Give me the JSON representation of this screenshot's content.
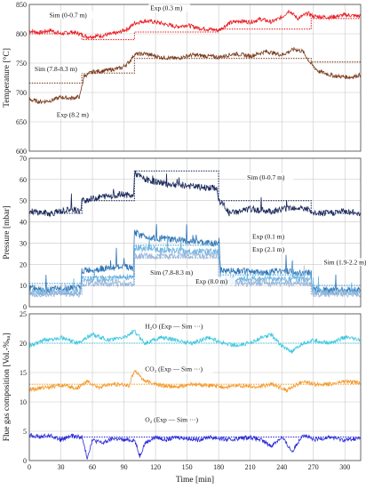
{
  "chart_data": [
    {
      "type": "line",
      "ylabel": "Temperature [°C]",
      "xlim": [
        0,
        315
      ],
      "ylim": [
        600,
        850
      ],
      "xticks": [
        0,
        30,
        60,
        90,
        120,
        150,
        180,
        210,
        240,
        270,
        300
      ],
      "yticks": [
        600,
        650,
        700,
        750,
        800,
        850
      ],
      "grid": true,
      "series": [
        {
          "name": "Exp (0.3 m)",
          "color": "#e8191e",
          "style": "solid",
          "x": [
            0,
            10,
            20,
            30,
            40,
            48,
            55,
            70,
            85,
            95,
            100,
            110,
            120,
            130,
            140,
            150,
            160,
            170,
            180,
            190,
            200,
            210,
            220,
            230,
            240,
            247,
            255,
            265,
            270,
            285,
            300,
            315
          ],
          "y": [
            805,
            802,
            806,
            800,
            803,
            800,
            795,
            797,
            802,
            810,
            818,
            822,
            820,
            816,
            812,
            815,
            810,
            808,
            806,
            818,
            822,
            820,
            825,
            820,
            828,
            840,
            826,
            835,
            830,
            828,
            832,
            830
          ]
        },
        {
          "name": "Sim (0-0.7 m)",
          "color": "#e8191e",
          "style": "dotted",
          "x": [
            0,
            50,
            50,
            100,
            100,
            180,
            180,
            268,
            268,
            315
          ],
          "y": [
            800,
            800,
            790,
            790,
            803,
            803,
            808,
            808,
            826,
            826
          ]
        },
        {
          "name": "Exp (8.2 m)",
          "color": "#7a3b1c",
          "style": "solid",
          "x": [
            0,
            10,
            20,
            30,
            40,
            48,
            52,
            60,
            75,
            88,
            95,
            100,
            110,
            125,
            140,
            155,
            170,
            180,
            195,
            210,
            225,
            240,
            252,
            260,
            268,
            275,
            290,
            305,
            315
          ],
          "y": [
            688,
            684,
            686,
            692,
            690,
            693,
            728,
            735,
            738,
            742,
            752,
            765,
            766,
            760,
            758,
            764,
            762,
            760,
            766,
            762,
            770,
            764,
            774,
            770,
            748,
            736,
            728,
            726,
            730
          ]
        },
        {
          "name": "Sim (7.8-8.3 m)",
          "color": "#7a3b1c",
          "style": "dotted",
          "x": [
            0,
            50,
            50,
            100,
            100,
            268,
            268,
            315
          ],
          "y": [
            716,
            716,
            733,
            733,
            758,
            758,
            752,
            752
          ]
        }
      ],
      "annotations": [
        {
          "text": "Exp (0.3 m)",
          "x": 115,
          "y": 840
        },
        {
          "text": "Sim (0-0.7 m)",
          "x": 19,
          "y": 828
        },
        {
          "text": "Sim (7.8-8.3 m)",
          "x": 5,
          "y": 736
        },
        {
          "text": "Exp (8.2 m)",
          "x": 26,
          "y": 658
        }
      ]
    },
    {
      "type": "line",
      "ylabel": "Pressure [mbar]",
      "xlim": [
        0,
        315
      ],
      "ylim": [
        0,
        70
      ],
      "xticks": [
        0,
        30,
        60,
        90,
        120,
        150,
        180,
        210,
        240,
        270,
        300
      ],
      "yticks": [
        0,
        10,
        20,
        30,
        40,
        50,
        60,
        70
      ],
      "grid": true,
      "series": [
        {
          "name": "Exp (0.3 m)",
          "color": "#1b2a5c",
          "style": "solid",
          "x": [
            0,
            20,
            40,
            49,
            50,
            70,
            90,
            99,
            100,
            110,
            130,
            150,
            170,
            178,
            180,
            185,
            190,
            210,
            230,
            250,
            265,
            268,
            280,
            300,
            315
          ],
          "y": [
            45,
            44,
            46,
            45,
            50,
            52,
            53,
            52,
            63,
            60,
            58,
            57,
            56,
            56,
            50,
            48,
            44,
            46,
            45,
            47,
            46,
            44,
            44,
            45,
            44
          ]
        },
        {
          "name": "Sim (0-0.7 m)",
          "color": "#1b2a5c",
          "style": "dotted",
          "x": [
            0,
            50,
            50,
            100,
            100,
            180,
            180,
            268,
            268,
            315
          ],
          "y": [
            44,
            44,
            50,
            50,
            64,
            64,
            50,
            50,
            44,
            44
          ]
        },
        {
          "name": "Exp (0.1 m)",
          "color": "#2e75b6",
          "style": "solid",
          "x": [
            0,
            20,
            40,
            49,
            50,
            70,
            90,
            99,
            100,
            110,
            130,
            150,
            170,
            180,
            182,
            200,
            220,
            240,
            260,
            268,
            269,
            290,
            315
          ],
          "y": [
            9,
            8,
            9,
            9,
            17,
            18,
            19,
            18,
            35,
            33,
            32,
            31,
            30,
            30,
            17,
            17,
            16,
            17,
            16,
            16,
            8,
            8,
            8
          ]
        },
        {
          "name": "Exp (2.1 m)",
          "color": "#6fb4e0",
          "style": "solid",
          "x": [
            0,
            20,
            40,
            49,
            50,
            70,
            90,
            99,
            100,
            120,
            150,
            180,
            182,
            210,
            240,
            268,
            269,
            315
          ],
          "y": [
            7,
            7,
            7,
            7,
            13,
            13,
            14,
            14,
            28,
            27,
            26,
            26,
            13,
            13,
            13,
            13,
            7,
            7
          ]
        },
        {
          "name": "Sim (1.9-2.2 m)",
          "color": "#3aa0d8",
          "style": "dotted",
          "x": [
            0,
            50,
            50,
            100,
            100,
            180,
            180,
            268,
            268,
            315
          ],
          "y": [
            11,
            11,
            14,
            14,
            29,
            29,
            15,
            15,
            10,
            10
          ]
        },
        {
          "name": "Exp (8.0 m)",
          "color": "#9bb7d9",
          "style": "solid",
          "x": [
            0,
            49,
            50,
            99,
            100,
            180,
            182,
            268,
            269,
            315
          ],
          "y": [
            6,
            6,
            11,
            11,
            24,
            24,
            11,
            11,
            6,
            6
          ]
        },
        {
          "name": "Sim (7.8-8.3 m)",
          "color": "#8aa8cf",
          "style": "dotted",
          "x": [
            0,
            50,
            50,
            100,
            100,
            180,
            180,
            268,
            268,
            315
          ],
          "y": [
            6,
            6,
            10,
            10,
            23,
            23,
            11,
            11,
            6,
            6
          ]
        }
      ],
      "annotations": [
        {
          "text": "Sim (0-0.7 m)",
          "x": 207,
          "y": 60
        },
        {
          "text": "Exp (0.1 m)",
          "x": 212,
          "y": 32
        },
        {
          "text": "Exp (2.1 m)",
          "x": 212,
          "y": 26
        },
        {
          "text": "Sim (1.9-2.2 m)",
          "x": 280,
          "y": 20
        },
        {
          "text": "Sim (7.8-8.3 m)",
          "x": 115,
          "y": 15
        },
        {
          "text": "Exp (8.0 m)",
          "x": 158,
          "y": 11
        }
      ]
    },
    {
      "type": "line",
      "ylabel": "Flue gas composition [Vol.-%ₓₐ]",
      "xlabel": "Time [min]",
      "xlim": [
        0,
        315
      ],
      "ylim": [
        0,
        25
      ],
      "xticks": [
        0,
        30,
        60,
        90,
        120,
        150,
        180,
        210,
        240,
        270,
        300
      ],
      "yticks": [
        0,
        5,
        10,
        15,
        20,
        25
      ],
      "grid": true,
      "series": [
        {
          "name": "H2O exp",
          "color": "#3cc6e0",
          "style": "solid",
          "x": [
            0,
            15,
            30,
            45,
            60,
            75,
            90,
            100,
            110,
            125,
            140,
            155,
            170,
            185,
            200,
            215,
            230,
            240,
            250,
            260,
            270,
            285,
            300,
            315
          ],
          "y": [
            19.5,
            20.5,
            21,
            20,
            21.5,
            20.5,
            21,
            22,
            20,
            21,
            20.5,
            20,
            21,
            20,
            19.5,
            20.5,
            21.5,
            19.5,
            18.5,
            20,
            20.5,
            20,
            21,
            20.5
          ]
        },
        {
          "name": "H2O sim",
          "color": "#3cc6e0",
          "style": "dotted",
          "x": [
            0,
            315
          ],
          "y": [
            20,
            20
          ]
        },
        {
          "name": "CO2 exp",
          "color": "#f39a2b",
          "style": "solid",
          "x": [
            0,
            15,
            30,
            45,
            55,
            65,
            80,
            95,
            100,
            110,
            125,
            140,
            155,
            170,
            185,
            200,
            215,
            230,
            245,
            260,
            270,
            285,
            300,
            315
          ],
          "y": [
            12,
            12.5,
            12.8,
            12.3,
            13.5,
            12.5,
            13,
            12.8,
            15.5,
            13.5,
            12.8,
            12.5,
            13,
            12.8,
            12.5,
            12.8,
            12.5,
            13,
            12,
            13.5,
            13,
            13,
            13.5,
            13.2
          ]
        },
        {
          "name": "CO2 sim",
          "color": "#f39a2b",
          "style": "dotted",
          "x": [
            0,
            315
          ],
          "y": [
            13,
            13
          ]
        },
        {
          "name": "O2 exp",
          "color": "#2a2ad8",
          "style": "solid",
          "x": [
            0,
            10,
            20,
            30,
            40,
            50,
            55,
            60,
            70,
            80,
            90,
            100,
            105,
            110,
            120,
            130,
            140,
            150,
            160,
            170,
            180,
            190,
            200,
            210,
            220,
            230,
            240,
            250,
            260,
            270,
            285,
            300,
            315
          ],
          "y": [
            4.5,
            4,
            4.3,
            3.5,
            4.2,
            4,
            0.5,
            3.5,
            3,
            3.8,
            3.5,
            3.5,
            0.8,
            3,
            4,
            3.5,
            4,
            3.8,
            3.5,
            4,
            3.8,
            3.5,
            3.8,
            4,
            3.5,
            2.5,
            4,
            1.5,
            4.5,
            3.5,
            4,
            3.5,
            3.8
          ]
        },
        {
          "name": "O2 sim",
          "color": "#2a2ad8",
          "style": "dotted",
          "x": [
            0,
            315
          ],
          "y": [
            4,
            4
          ]
        }
      ],
      "annotations": [
        {
          "text": "H₂O (Exp — Sim ···)",
          "x": 110,
          "y": 22.5
        },
        {
          "text": "CO₂ (Exp — Sim ···)",
          "x": 110,
          "y": 15.2
        },
        {
          "text": "O₂ (Exp — Sim ···)",
          "x": 110,
          "y": 6.6
        }
      ]
    }
  ]
}
